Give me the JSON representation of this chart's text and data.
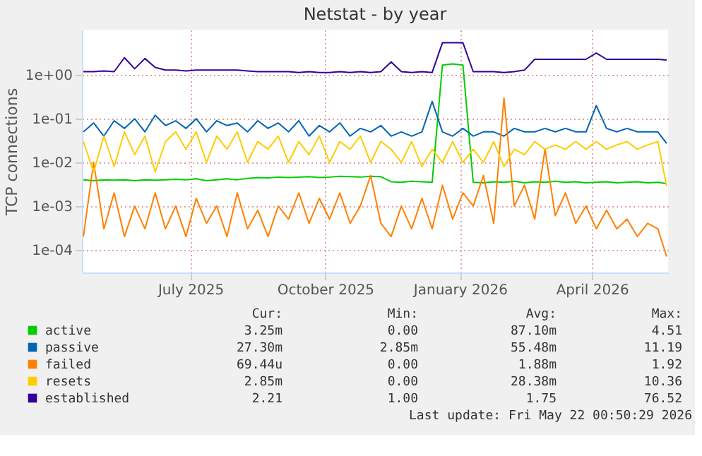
{
  "chart_data": {
    "type": "line",
    "title": "Netstat - by year",
    "ylabel": "TCP connections",
    "log": true,
    "grid": true,
    "legend": "bottom",
    "xlim": [
      "2025-04-18",
      "2026-05-23"
    ],
    "xticks": [
      {
        "value": "2025-07-01",
        "label": "July 2025"
      },
      {
        "value": "2025-10-01",
        "label": "October 2025"
      },
      {
        "value": "2026-01-01",
        "label": "January 2026"
      },
      {
        "value": "2026-04-01",
        "label": "April 2026"
      }
    ],
    "ylim": [
      3e-05,
      11
    ],
    "yticks": [
      {
        "value": 0.0001,
        "label": "1e-04"
      },
      {
        "value": 0.001,
        "label": "1e-03"
      },
      {
        "value": 0.01,
        "label": "1e-02"
      },
      {
        "value": 0.1,
        "label": "1e-01"
      },
      {
        "value": 1,
        "label": "1e+00"
      }
    ],
    "x": [
      "2025-04-19",
      "2025-04-26",
      "2025-05-03",
      "2025-05-10",
      "2025-05-17",
      "2025-05-24",
      "2025-05-31",
      "2025-06-07",
      "2025-06-14",
      "2025-06-21",
      "2025-06-28",
      "2025-07-05",
      "2025-07-12",
      "2025-07-19",
      "2025-07-26",
      "2025-08-02",
      "2025-08-09",
      "2025-08-16",
      "2025-08-23",
      "2025-08-30",
      "2025-09-06",
      "2025-09-13",
      "2025-09-20",
      "2025-09-27",
      "2025-10-04",
      "2025-10-11",
      "2025-10-18",
      "2025-10-25",
      "2025-11-01",
      "2025-11-08",
      "2025-11-15",
      "2025-11-22",
      "2025-11-29",
      "2025-12-06",
      "2025-12-13",
      "2025-12-20",
      "2025-12-27",
      "2026-01-03",
      "2026-01-10",
      "2026-01-17",
      "2026-01-24",
      "2026-01-31",
      "2026-02-07",
      "2026-02-14",
      "2026-02-21",
      "2026-02-28",
      "2026-03-07",
      "2026-03-14",
      "2026-03-21",
      "2026-03-28",
      "2026-04-04",
      "2026-04-11",
      "2026-04-18",
      "2026-04-25",
      "2026-05-02",
      "2026-05-09",
      "2026-05-16",
      "2026-05-22"
    ],
    "series": [
      {
        "name": "active",
        "color": "#00cc00",
        "values": [
          0.004,
          0.0038,
          0.004,
          0.0039,
          0.004,
          0.0038,
          0.004,
          0.0039,
          0.004,
          0.0041,
          0.004,
          0.0042,
          0.0038,
          0.004,
          0.0042,
          0.004,
          0.0043,
          0.0045,
          0.0044,
          0.0046,
          0.0045,
          0.0046,
          0.0047,
          0.0045,
          0.0046,
          0.0048,
          0.0047,
          0.0046,
          0.0048,
          0.0047,
          0.0036,
          0.0035,
          0.0037,
          0.0036,
          0.0035,
          1.7,
          1.8,
          1.7,
          0.0035,
          0.0034,
          0.0036,
          0.0035,
          0.0037,
          0.0034,
          0.0036,
          0.0035,
          0.0037,
          0.0035,
          0.0036,
          0.0034,
          0.0035,
          0.0036,
          0.0034,
          0.0035,
          0.0036,
          0.0034,
          0.0035,
          0.00325
        ]
      },
      {
        "name": "passive",
        "color": "#0066b3",
        "values": [
          0.05,
          0.08,
          0.04,
          0.09,
          0.06,
          0.1,
          0.05,
          0.12,
          0.07,
          0.09,
          0.06,
          0.1,
          0.05,
          0.09,
          0.07,
          0.08,
          0.05,
          0.09,
          0.06,
          0.08,
          0.05,
          0.09,
          0.04,
          0.07,
          0.05,
          0.08,
          0.04,
          0.06,
          0.05,
          0.07,
          0.04,
          0.05,
          0.04,
          0.05,
          0.25,
          0.05,
          0.04,
          0.06,
          0.04,
          0.05,
          0.05,
          0.04,
          0.06,
          0.05,
          0.05,
          0.06,
          0.05,
          0.06,
          0.05,
          0.05,
          0.2,
          0.06,
          0.05,
          0.06,
          0.05,
          0.05,
          0.05,
          0.0273
        ]
      },
      {
        "name": "failed",
        "color": "#ff8000",
        "values": [
          0.0002,
          0.01,
          0.0003,
          0.002,
          0.0002,
          0.001,
          0.0003,
          0.002,
          0.0003,
          0.001,
          0.0002,
          0.0015,
          0.0004,
          0.001,
          0.0002,
          0.002,
          0.0003,
          0.0008,
          0.0002,
          0.001,
          0.0005,
          0.002,
          0.0004,
          0.0015,
          0.0005,
          0.002,
          0.0004,
          0.001,
          0.005,
          0.0004,
          0.0002,
          0.001,
          0.0003,
          0.0015,
          0.0003,
          0.003,
          0.0005,
          0.002,
          0.001,
          0.005,
          0.0004,
          0.3,
          0.001,
          0.003,
          0.0005,
          0.02,
          0.0006,
          0.002,
          0.0004,
          0.001,
          0.0003,
          0.0008,
          0.0003,
          0.0005,
          0.0002,
          0.0004,
          0.0003,
          6.94e-05
        ]
      },
      {
        "name": "resets",
        "color": "#ffcc00",
        "values": [
          0.03,
          0.006,
          0.04,
          0.008,
          0.05,
          0.015,
          0.04,
          0.006,
          0.03,
          0.05,
          0.02,
          0.05,
          0.01,
          0.04,
          0.02,
          0.05,
          0.01,
          0.03,
          0.02,
          0.04,
          0.01,
          0.03,
          0.015,
          0.04,
          0.01,
          0.03,
          0.02,
          0.04,
          0.01,
          0.03,
          0.02,
          0.01,
          0.03,
          0.008,
          0.02,
          0.01,
          0.03,
          0.01,
          0.02,
          0.01,
          0.03,
          0.008,
          0.02,
          0.015,
          0.03,
          0.02,
          0.025,
          0.02,
          0.03,
          0.02,
          0.03,
          0.02,
          0.025,
          0.03,
          0.02,
          0.025,
          0.03,
          0.00285
        ]
      },
      {
        "name": "established",
        "color": "#330099",
        "values": [
          1.2,
          1.2,
          1.25,
          1.2,
          2.5,
          1.4,
          2.4,
          1.5,
          1.3,
          1.3,
          1.25,
          1.3,
          1.3,
          1.3,
          1.3,
          1.3,
          1.25,
          1.2,
          1.2,
          1.2,
          1.2,
          1.15,
          1.2,
          1.15,
          1.15,
          1.2,
          1.15,
          1.2,
          1.15,
          1.2,
          2.0,
          1.2,
          1.15,
          1.2,
          1.15,
          5.5,
          5.5,
          5.5,
          1.2,
          1.2,
          1.2,
          1.15,
          1.2,
          1.3,
          2.3,
          2.3,
          2.3,
          2.3,
          2.3,
          2.3,
          3.2,
          2.3,
          2.3,
          2.3,
          2.3,
          2.3,
          2.3,
          2.21
        ]
      }
    ],
    "annotations": [
      "Cur:",
      "Min:",
      "Avg:",
      "Max:",
      "3.25m",
      "0.00",
      "87.10m",
      "4.51",
      "27.30m",
      "2.85m",
      "55.48m",
      "11.19",
      "69.44u",
      "0.00",
      "1.88m",
      "1.92",
      "2.85m",
      "0.00",
      "28.38m",
      "10.36",
      "2.21",
      "1.00",
      "1.75",
      "76.52",
      "Last update: Fri May 22 00:50:29 2026"
    ]
  }
}
